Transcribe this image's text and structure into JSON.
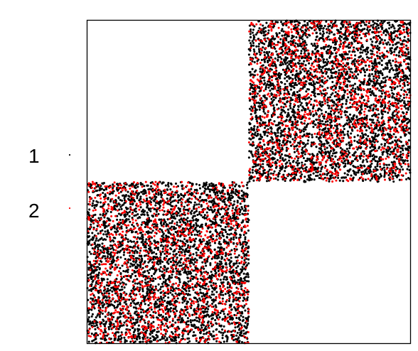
{
  "chart_data": {
    "type": "scatter",
    "title": "",
    "xlabel": "",
    "ylabel": "",
    "xlim": [
      0,
      1
    ],
    "ylim": [
      0,
      1
    ],
    "grid": false,
    "axes_visible": false,
    "frame": "box",
    "legend_position": "left",
    "series": [
      {
        "name": "1",
        "color": "#000000",
        "marker": "dot",
        "point_count_estimate": 7000,
        "regions": [
          {
            "x_range": [
              0,
              0.5
            ],
            "y_range": [
              0,
              0.5
            ]
          },
          {
            "x_range": [
              0.5,
              1
            ],
            "y_range": [
              0.5,
              1
            ]
          }
        ]
      },
      {
        "name": "2",
        "color": "#ff0000",
        "marker": "dot",
        "point_count_estimate": 2400,
        "regions": [
          {
            "x_range": [
              0,
              0.5
            ],
            "y_range": [
              0,
              0.5
            ]
          },
          {
            "x_range": [
              0.5,
              1
            ],
            "y_range": [
              0.5,
              1
            ]
          }
        ]
      }
    ]
  }
}
